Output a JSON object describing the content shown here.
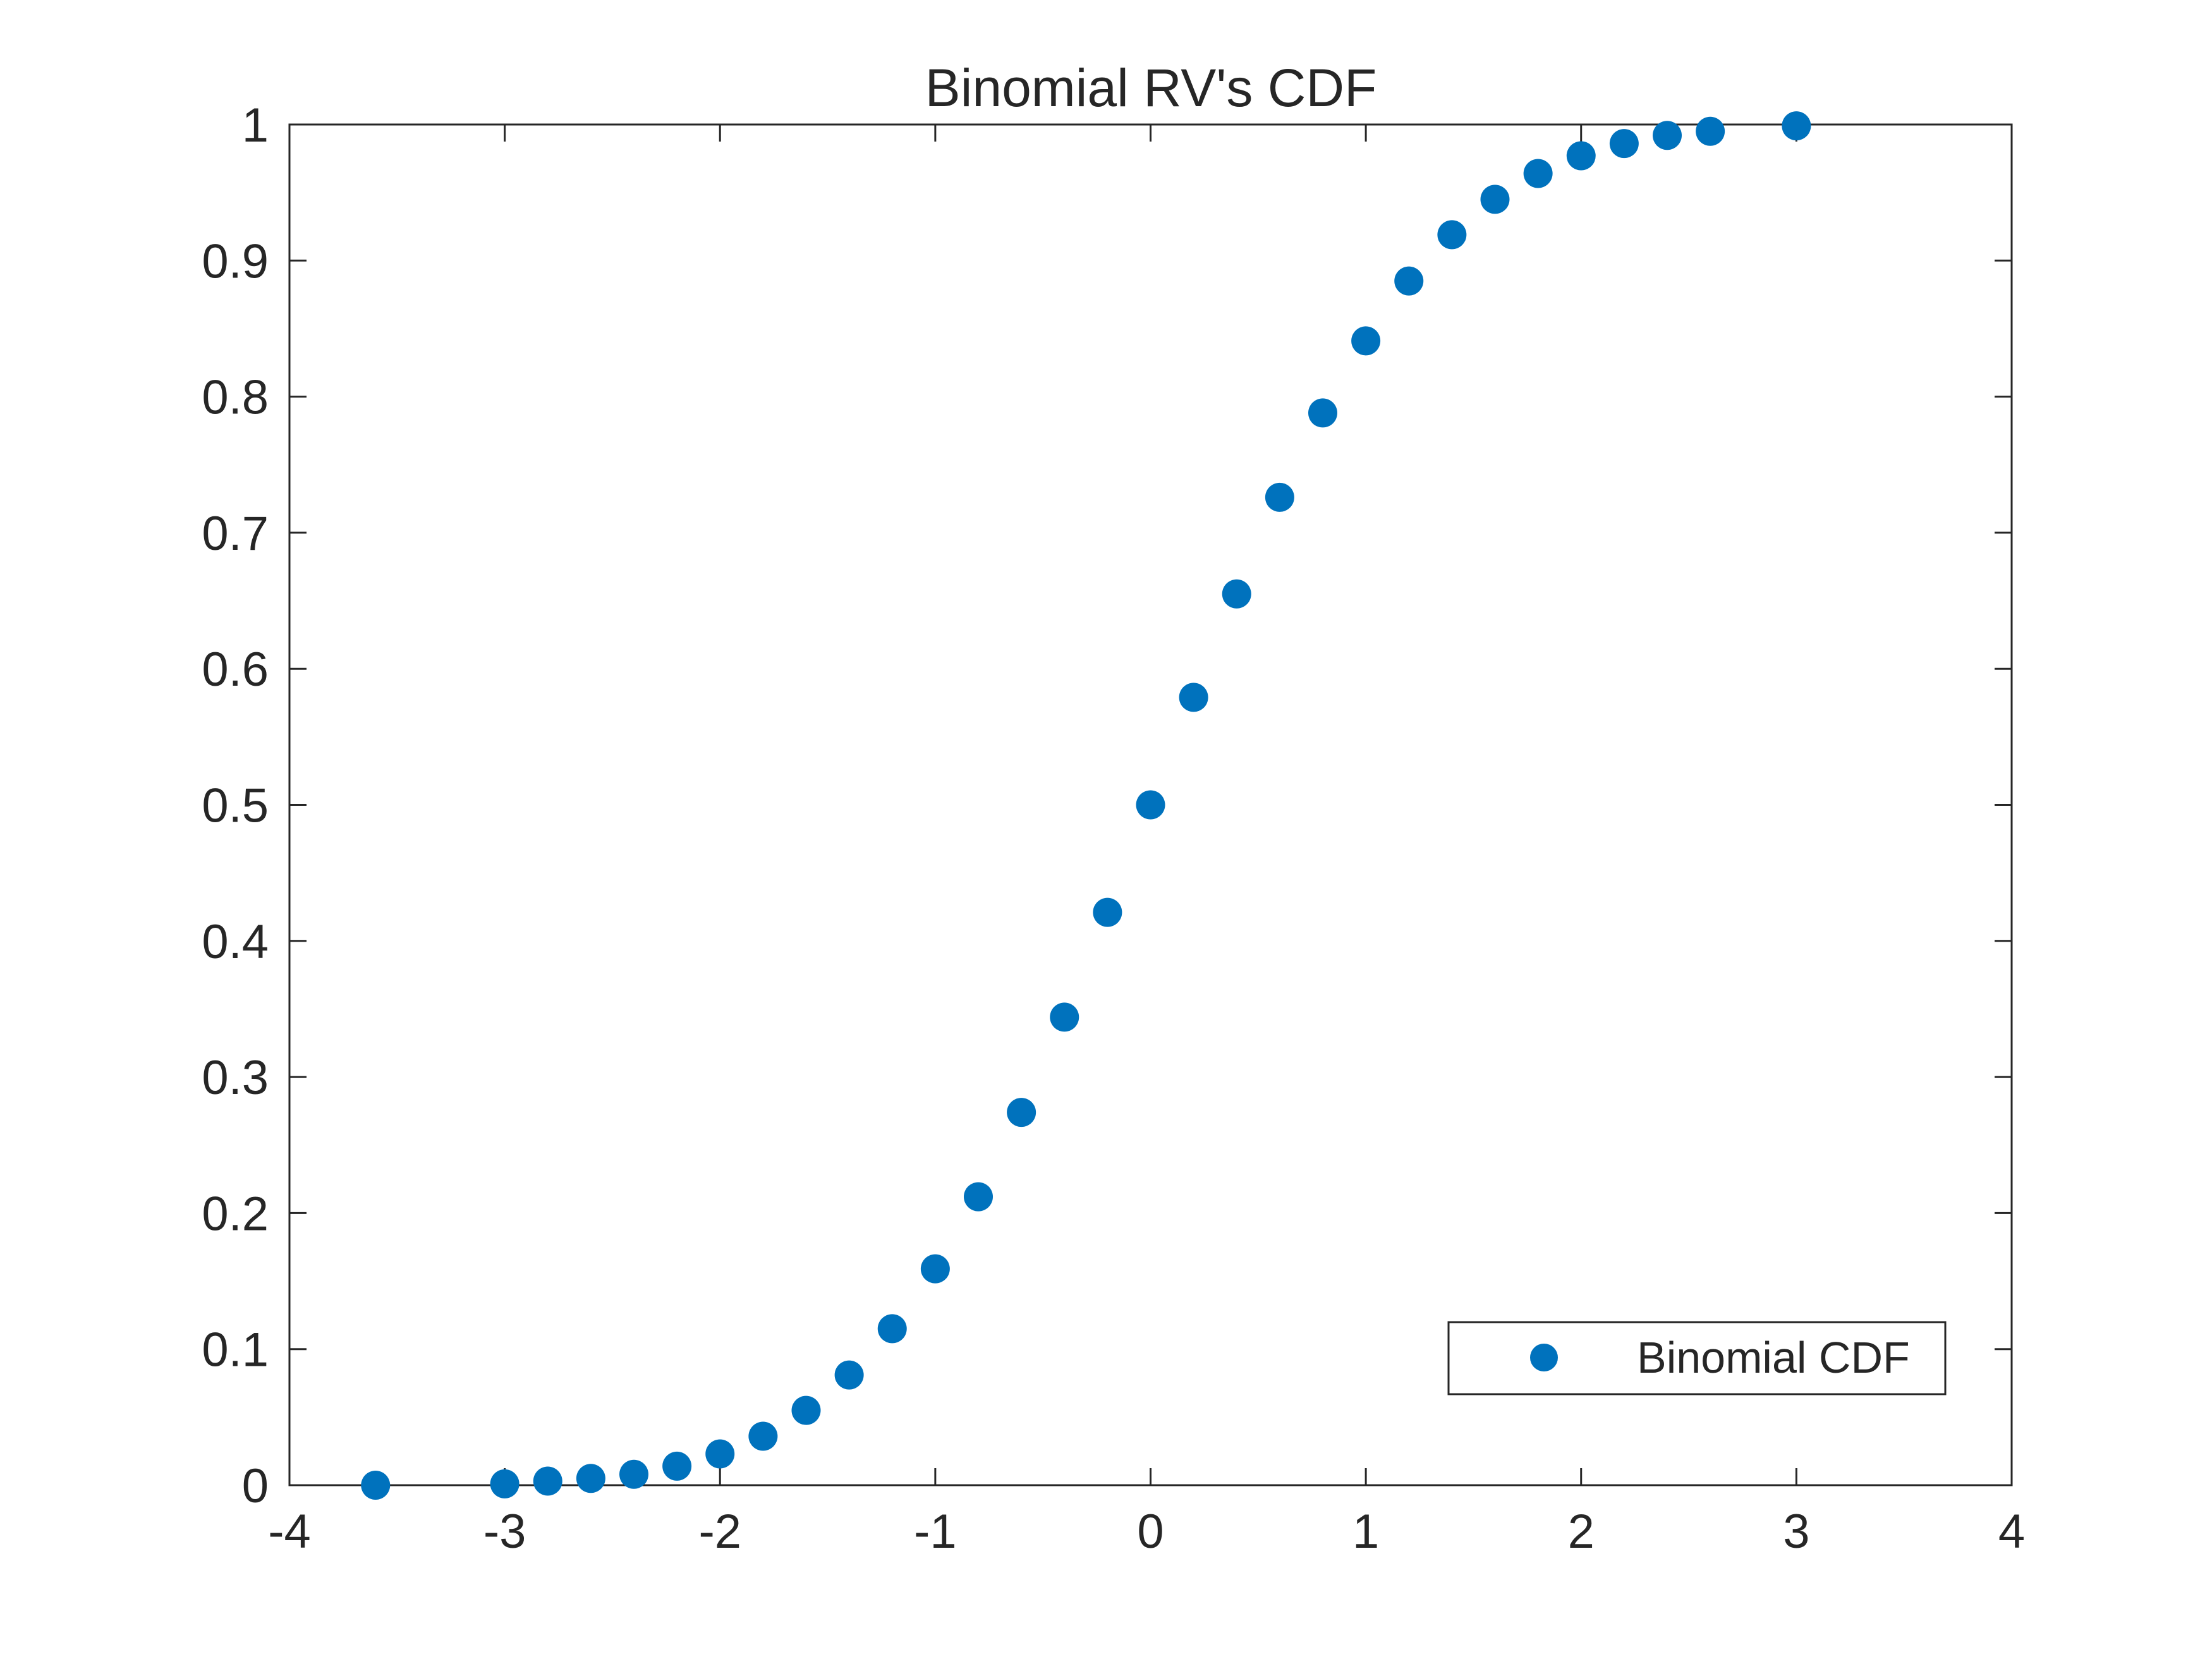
{
  "chart_data": {
    "type": "scatter",
    "title": "Binomial RV's CDF",
    "xlabel": "",
    "ylabel": "",
    "xlim": [
      -4,
      4
    ],
    "ylim": [
      0,
      1
    ],
    "xticks": [
      -4,
      -3,
      -2,
      -1,
      0,
      1,
      2,
      3,
      4
    ],
    "yticks": [
      0,
      0.1,
      0.2,
      0.3,
      0.4,
      0.5,
      0.6,
      0.7,
      0.8,
      0.9,
      1
    ],
    "xtick_labels": [
      "-4",
      "-3",
      "-2",
      "-1",
      "0",
      "1",
      "2",
      "3",
      "4"
    ],
    "ytick_labels": [
      "0",
      "0.1",
      "0.2",
      "0.3",
      "0.4",
      "0.5",
      "0.6",
      "0.7",
      "0.8",
      "0.9",
      "1"
    ],
    "grid": false,
    "legend_position": "bottom-right",
    "series": [
      {
        "name": "Binomial CDF",
        "color": "#0072BD",
        "marker": "filled-circle",
        "x": [
          -3.6,
          -3.0,
          -2.8,
          -2.6,
          -2.4,
          -2.2,
          -2.0,
          -1.8,
          -1.6,
          -1.4,
          -1.2,
          -1.0,
          -0.8,
          -0.6,
          -0.4,
          -0.2,
          0.0,
          0.2,
          0.4,
          0.6,
          0.8,
          1.0,
          1.2,
          1.4,
          1.6,
          1.8,
          2.0,
          2.2,
          2.4,
          2.6,
          3.0
        ],
        "y": [
          0.0,
          0.001,
          0.003,
          0.005,
          0.008,
          0.014,
          0.023,
          0.036,
          0.055,
          0.081,
          0.115,
          0.159,
          0.212,
          0.274,
          0.344,
          0.421,
          0.5,
          0.579,
          0.655,
          0.726,
          0.788,
          0.841,
          0.885,
          0.919,
          0.945,
          0.964,
          0.977,
          0.986,
          0.992,
          0.995,
          0.999
        ]
      }
    ]
  }
}
